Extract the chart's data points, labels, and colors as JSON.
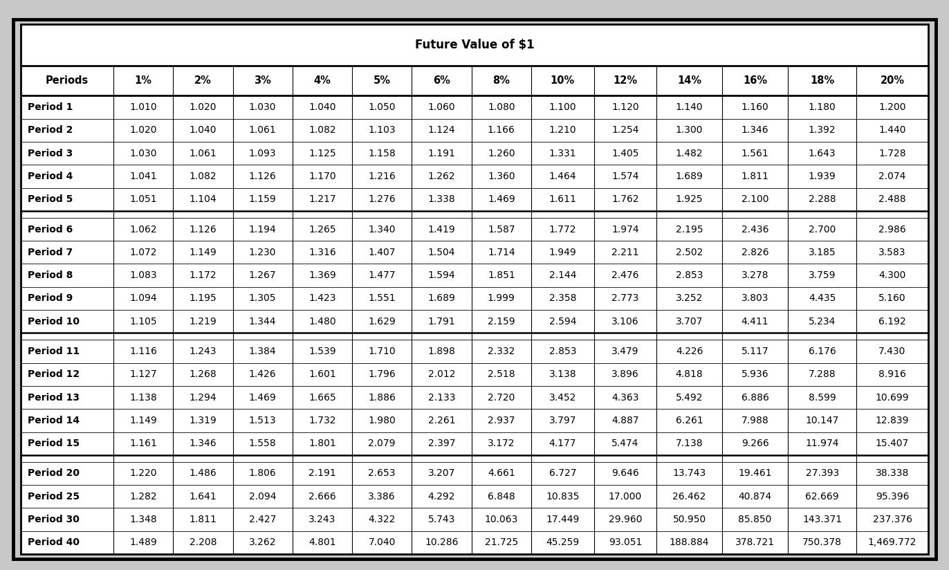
{
  "title": "Future Value of $1",
  "columns": [
    "Periods",
    "1%",
    "2%",
    "3%",
    "4%",
    "5%",
    "6%",
    "8%",
    "10%",
    "12%",
    "14%",
    "16%",
    "18%",
    "20%"
  ],
  "rows": [
    [
      "Period 1",
      "1.010",
      "1.020",
      "1.030",
      "1.040",
      "1.050",
      "1.060",
      "1.080",
      "1.100",
      "1.120",
      "1.140",
      "1.160",
      "1.180",
      "1.200"
    ],
    [
      "Period 2",
      "1.020",
      "1.040",
      "1.061",
      "1.082",
      "1.103",
      "1.124",
      "1.166",
      "1.210",
      "1.254",
      "1.300",
      "1.346",
      "1.392",
      "1.440"
    ],
    [
      "Period 3",
      "1.030",
      "1.061",
      "1.093",
      "1.125",
      "1.158",
      "1.191",
      "1.260",
      "1.331",
      "1.405",
      "1.482",
      "1.561",
      "1.643",
      "1.728"
    ],
    [
      "Period 4",
      "1.041",
      "1.082",
      "1.126",
      "1.170",
      "1.216",
      "1.262",
      "1.360",
      "1.464",
      "1.574",
      "1.689",
      "1.811",
      "1.939",
      "2.074"
    ],
    [
      "Period 5",
      "1.051",
      "1.104",
      "1.159",
      "1.217",
      "1.276",
      "1.338",
      "1.469",
      "1.611",
      "1.762",
      "1.925",
      "2.100",
      "2.288",
      "2.488"
    ],
    [
      "Period 6",
      "1.062",
      "1.126",
      "1.194",
      "1.265",
      "1.340",
      "1.419",
      "1.587",
      "1.772",
      "1.974",
      "2.195",
      "2.436",
      "2.700",
      "2.986"
    ],
    [
      "Period 7",
      "1.072",
      "1.149",
      "1.230",
      "1.316",
      "1.407",
      "1.504",
      "1.714",
      "1.949",
      "2.211",
      "2.502",
      "2.826",
      "3.185",
      "3.583"
    ],
    [
      "Period 8",
      "1.083",
      "1.172",
      "1.267",
      "1.369",
      "1.477",
      "1.594",
      "1.851",
      "2.144",
      "2.476",
      "2.853",
      "3.278",
      "3.759",
      "4.300"
    ],
    [
      "Period 9",
      "1.094",
      "1.195",
      "1.305",
      "1.423",
      "1.551",
      "1.689",
      "1.999",
      "2.358",
      "2.773",
      "3.252",
      "3.803",
      "4.435",
      "5.160"
    ],
    [
      "Period 10",
      "1.105",
      "1.219",
      "1.344",
      "1.480",
      "1.629",
      "1.791",
      "2.159",
      "2.594",
      "3.106",
      "3.707",
      "4.411",
      "5.234",
      "6.192"
    ],
    [
      "Period 11",
      "1.116",
      "1.243",
      "1.384",
      "1.539",
      "1.710",
      "1.898",
      "2.332",
      "2.853",
      "3.479",
      "4.226",
      "5.117",
      "6.176",
      "7.430"
    ],
    [
      "Period 12",
      "1.127",
      "1.268",
      "1.426",
      "1.601",
      "1.796",
      "2.012",
      "2.518",
      "3.138",
      "3.896",
      "4.818",
      "5.936",
      "7.288",
      "8.916"
    ],
    [
      "Period 13",
      "1.138",
      "1.294",
      "1.469",
      "1.665",
      "1.886",
      "2.133",
      "2.720",
      "3.452",
      "4.363",
      "5.492",
      "6.886",
      "8.599",
      "10.699"
    ],
    [
      "Period 14",
      "1.149",
      "1.319",
      "1.513",
      "1.732",
      "1.980",
      "2.261",
      "2.937",
      "3.797",
      "4.887",
      "6.261",
      "7.988",
      "10.147",
      "12.839"
    ],
    [
      "Period 15",
      "1.161",
      "1.346",
      "1.558",
      "1.801",
      "2.079",
      "2.397",
      "3.172",
      "4.177",
      "5.474",
      "7.138",
      "9.266",
      "11.974",
      "15.407"
    ],
    [
      "Period 20",
      "1.220",
      "1.486",
      "1.806",
      "2.191",
      "2.653",
      "3.207",
      "4.661",
      "6.727",
      "9.646",
      "13.743",
      "19.461",
      "27.393",
      "38.338"
    ],
    [
      "Period 25",
      "1.282",
      "1.641",
      "2.094",
      "2.666",
      "3.386",
      "4.292",
      "6.848",
      "10.835",
      "17.000",
      "26.462",
      "40.874",
      "62.669",
      "95.396"
    ],
    [
      "Period 30",
      "1.348",
      "1.811",
      "2.427",
      "3.243",
      "4.322",
      "5.743",
      "10.063",
      "17.449",
      "29.960",
      "50.950",
      "85.850",
      "143.371",
      "237.376"
    ],
    [
      "Period 40",
      "1.489",
      "2.208",
      "3.262",
      "4.801",
      "7.040",
      "10.286",
      "21.725",
      "45.259",
      "93.051",
      "188.884",
      "378.721",
      "750.378",
      "1,469.772"
    ]
  ],
  "outer_bg": "#c8c8c8",
  "table_bg": "#ffffff",
  "cell_text_color": "#000000",
  "title_fontsize": 12,
  "header_fontsize": 10.5,
  "cell_fontsize": 10,
  "col_weights": [
    1.55,
    1.0,
    1.0,
    1.0,
    1.0,
    1.0,
    1.0,
    1.0,
    1.05,
    1.05,
    1.1,
    1.1,
    1.15,
    1.2
  ]
}
